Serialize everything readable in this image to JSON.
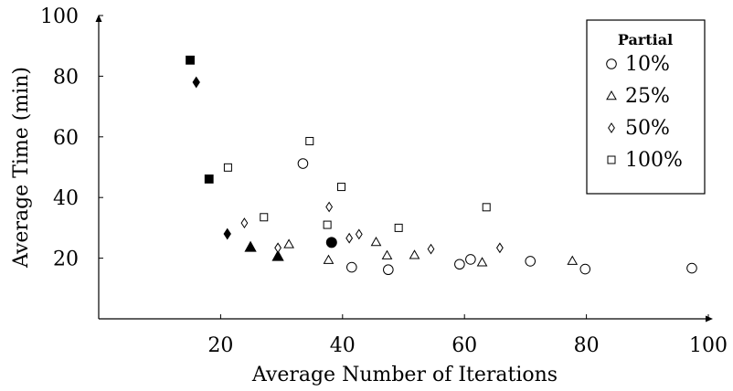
{
  "chart_data": {
    "type": "scatter",
    "xlabel": "Average Number of Iterations",
    "ylabel": "Average Time (min)",
    "xlim": [
      0,
      100
    ],
    "ylim": [
      0,
      100
    ],
    "xticks": [
      20,
      40,
      60,
      80,
      100
    ],
    "yticks": [
      20,
      40,
      60,
      80,
      100
    ],
    "grid": false,
    "legend": {
      "title": "Partial",
      "position": "top-right"
    },
    "series": [
      {
        "name": "10%",
        "marker": "circle",
        "points": [
          {
            "x": 33.5,
            "y": 51.2
          },
          {
            "x": 41.5,
            "y": 17.0
          },
          {
            "x": 47.5,
            "y": 16.2
          },
          {
            "x": 59.2,
            "y": 18.0
          },
          {
            "x": 61.0,
            "y": 19.6
          },
          {
            "x": 70.8,
            "y": 19.0
          },
          {
            "x": 79.8,
            "y": 16.4
          },
          {
            "x": 97.3,
            "y": 16.7
          },
          {
            "x": 38.2,
            "y": 25.2,
            "filled": true
          }
        ]
      },
      {
        "name": "25%",
        "marker": "triangle",
        "points": [
          {
            "x": 31.2,
            "y": 24.6
          },
          {
            "x": 37.7,
            "y": 19.4
          },
          {
            "x": 45.5,
            "y": 25.3
          },
          {
            "x": 47.3,
            "y": 20.9
          },
          {
            "x": 51.8,
            "y": 21.0
          },
          {
            "x": 62.9,
            "y": 18.6
          },
          {
            "x": 77.7,
            "y": 19.1
          },
          {
            "x": 24.9,
            "y": 23.6,
            "filled": true
          },
          {
            "x": 29.4,
            "y": 20.6,
            "filled": true
          }
        ]
      },
      {
        "name": "50%",
        "marker": "diamond",
        "points": [
          {
            "x": 23.9,
            "y": 31.6
          },
          {
            "x": 29.4,
            "y": 23.4
          },
          {
            "x": 37.8,
            "y": 36.9
          },
          {
            "x": 41.1,
            "y": 26.6
          },
          {
            "x": 42.7,
            "y": 27.9
          },
          {
            "x": 54.5,
            "y": 23.0
          },
          {
            "x": 65.8,
            "y": 23.4
          },
          {
            "x": 16.0,
            "y": 78.0,
            "filled": true
          },
          {
            "x": 21.1,
            "y": 28.0,
            "filled": true
          }
        ]
      },
      {
        "name": "100%",
        "marker": "square",
        "points": [
          {
            "x": 21.2,
            "y": 49.9
          },
          {
            "x": 27.1,
            "y": 33.5
          },
          {
            "x": 34.6,
            "y": 58.6
          },
          {
            "x": 37.5,
            "y": 31.0
          },
          {
            "x": 39.8,
            "y": 43.5
          },
          {
            "x": 49.2,
            "y": 30.0
          },
          {
            "x": 63.6,
            "y": 36.8
          },
          {
            "x": 15.0,
            "y": 85.3,
            "filled": true
          },
          {
            "x": 18.1,
            "y": 46.1,
            "filled": true
          }
        ]
      }
    ]
  }
}
